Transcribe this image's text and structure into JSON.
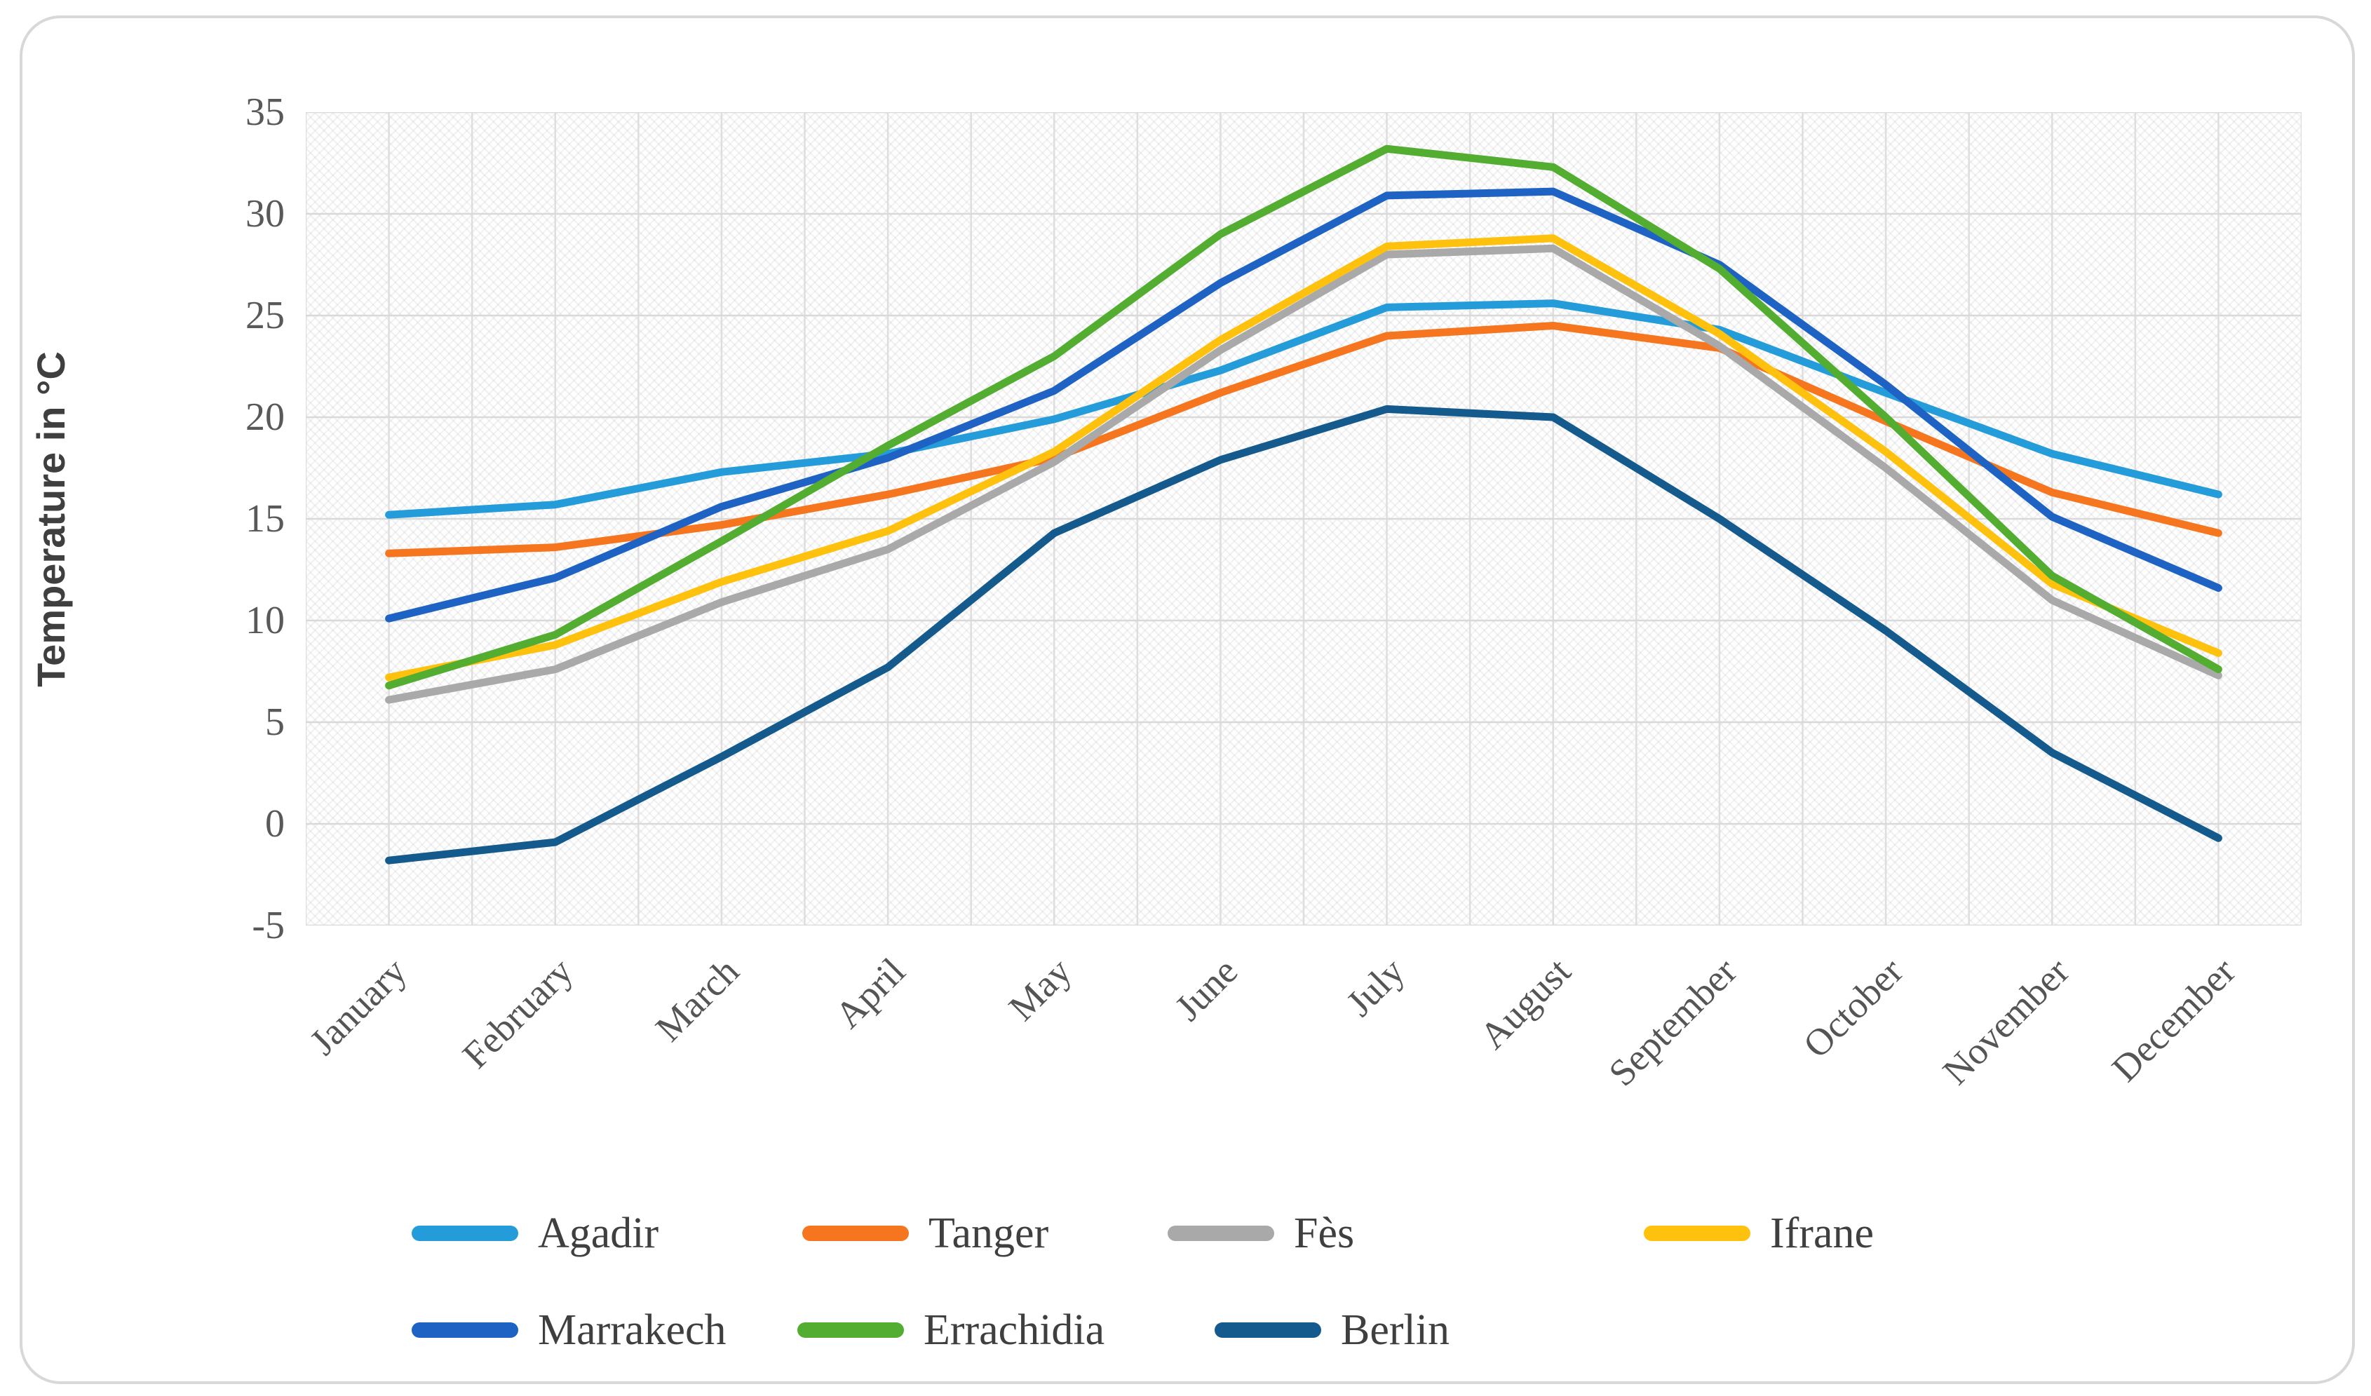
{
  "axis": {
    "y_title": "Temperature in °C",
    "y_ticks": [
      "35",
      "30",
      "25",
      "20",
      "15",
      "10",
      "5",
      "0",
      "-5"
    ]
  },
  "chart_data": {
    "type": "line",
    "title": "",
    "xlabel": "",
    "ylabel": "Temperature in °C",
    "ylim": [
      -5,
      35
    ],
    "grid": true,
    "legend_position": "bottom",
    "plot_background": "diagonal-crosshatch",
    "categories": [
      "January",
      "February",
      "March",
      "April",
      "May",
      "June",
      "July",
      "August",
      "September",
      "October",
      "November",
      "December"
    ],
    "series": [
      {
        "name": "Agadir",
        "color": "#249CD9",
        "values": [
          15.2,
          15.7,
          17.3,
          18.2,
          19.9,
          22.3,
          25.4,
          25.6,
          24.3,
          21.2,
          18.2,
          16.2
        ]
      },
      {
        "name": "Tanger",
        "color": "#F5761E",
        "values": [
          13.3,
          13.6,
          14.7,
          16.2,
          18.0,
          21.2,
          24.0,
          24.5,
          23.4,
          19.8,
          16.3,
          14.3
        ]
      },
      {
        "name": "Fès",
        "color": "#A9A9A9",
        "values": [
          6.1,
          7.6,
          10.9,
          13.5,
          17.8,
          23.3,
          28.0,
          28.3,
          23.5,
          17.5,
          11.0,
          7.3
        ]
      },
      {
        "name": "Ifrane",
        "color": "#FEC10D",
        "values": [
          7.2,
          8.8,
          11.9,
          14.4,
          18.3,
          23.8,
          28.4,
          28.8,
          24.1,
          18.3,
          11.8,
          8.4
        ]
      },
      {
        "name": "Marrakech",
        "color": "#1E63C4",
        "values": [
          10.1,
          12.1,
          15.6,
          18.0,
          21.3,
          26.6,
          30.9,
          31.1,
          27.5,
          21.6,
          15.1,
          11.6
        ]
      },
      {
        "name": "Errachidia",
        "color": "#53AD31",
        "values": [
          6.8,
          9.3,
          13.9,
          18.6,
          23.0,
          29.0,
          33.2,
          32.3,
          27.3,
          20.0,
          12.2,
          7.6
        ]
      },
      {
        "name": "Berlin",
        "color": "#155A8D",
        "values": [
          -1.8,
          -0.9,
          3.3,
          7.7,
          14.3,
          17.9,
          20.4,
          20.0,
          15.0,
          9.5,
          3.5,
          -0.7
        ]
      }
    ],
    "gridline_color": "#d9d9d9"
  }
}
